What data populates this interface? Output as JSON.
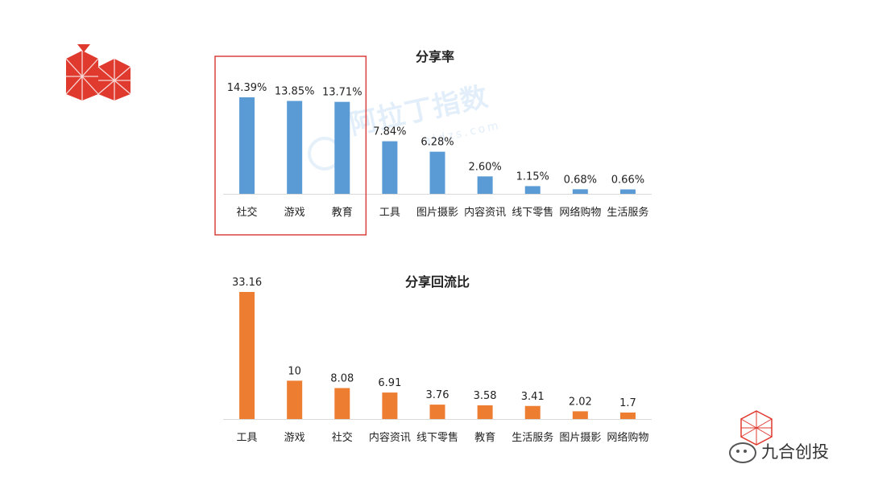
{
  "chart_data": [
    {
      "type": "bar",
      "title": "分享率",
      "categories": [
        "社交",
        "游戏",
        "教育",
        "工具",
        "图片摄影",
        "内容资讯",
        "线下零售",
        "网络购物",
        "生活服务"
      ],
      "values": [
        14.39,
        13.85,
        13.71,
        7.84,
        6.28,
        2.6,
        1.15,
        0.68,
        0.66
      ],
      "value_labels": [
        "14.39%",
        "13.85%",
        "13.71%",
        "7.84%",
        "6.28%",
        "2.60%",
        "1.15%",
        "0.68%",
        "0.66%"
      ],
      "color": "#5b9bd5",
      "highlight_box": [
        "社交",
        "游戏",
        "教育"
      ],
      "highlight_color": "#d9423f",
      "ylim": [
        0,
        14.39
      ],
      "grid": false
    },
    {
      "type": "bar",
      "title": "分享回流比",
      "categories": [
        "工具",
        "游戏",
        "社交",
        "内容资讯",
        "线下零售",
        "教育",
        "生活服务",
        "图片摄影",
        "网络购物"
      ],
      "values": [
        33.16,
        10,
        8.08,
        6.91,
        3.76,
        3.58,
        3.41,
        2.02,
        1.7
      ],
      "value_labels": [
        "33.16",
        "10",
        "8.08",
        "6.91",
        "3.76",
        "3.58",
        "3.41",
        "2.02",
        "1.7"
      ],
      "color": "#ed7d31",
      "ylim": [
        0,
        33.16
      ],
      "grid": false
    }
  ],
  "watermark": {
    "main": "阿拉丁指数",
    "sub": "aldzs.com",
    "color": "#7fb4e8"
  },
  "brand": {
    "name": "九合创投",
    "logo_color": "#e03a2f"
  }
}
